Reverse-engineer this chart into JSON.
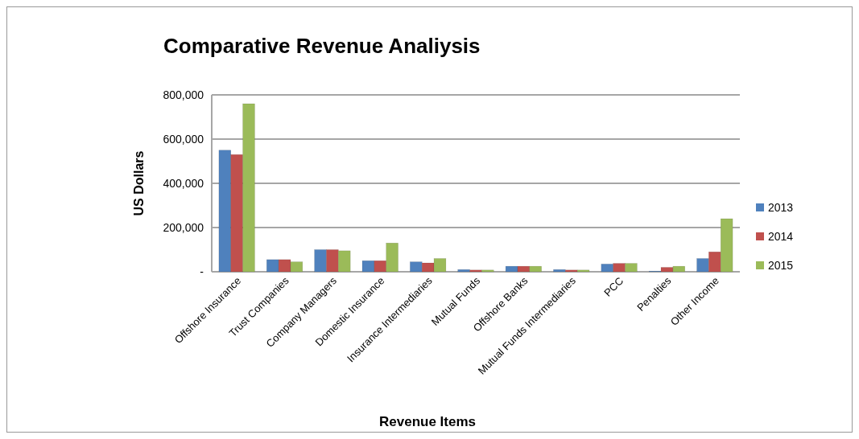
{
  "chart_data": {
    "type": "bar",
    "title": "Comparative Revenue Analiysis",
    "xlabel": "Revenue Items",
    "ylabel": "US Dollars",
    "categories": [
      "Offshore Insurance",
      "Trust Companies",
      "Company Managers",
      "Domestic Insurance",
      "Insurance Intermediaries",
      "Mutual Funds",
      "Offshore Banks",
      "Mutual Funds Intermediaries",
      "PCC",
      "Penalties",
      "Other Income"
    ],
    "series": [
      {
        "name": "2013",
        "color": "#4f81bd",
        "values": [
          550000,
          55000,
          100000,
          50000,
          45000,
          10000,
          25000,
          10000,
          35000,
          3000,
          60000
        ]
      },
      {
        "name": "2014",
        "color": "#c0504d",
        "values": [
          530000,
          55000,
          100000,
          50000,
          40000,
          8000,
          25000,
          8000,
          38000,
          20000,
          90000
        ]
      },
      {
        "name": "2015",
        "color": "#9bbb59",
        "values": [
          760000,
          45000,
          95000,
          130000,
          60000,
          8000,
          25000,
          8000,
          38000,
          25000,
          240000
        ]
      }
    ],
    "ylim": [
      0,
      800000
    ],
    "yticks": [
      {
        "value": 0,
        "label": "-"
      },
      {
        "value": 200000,
        "label": "200,000"
      },
      {
        "value": 400000,
        "label": "400,000"
      },
      {
        "value": 600000,
        "label": "600,000"
      },
      {
        "value": 800000,
        "label": "800,000"
      }
    ],
    "grid": "y",
    "legend": "right"
  }
}
